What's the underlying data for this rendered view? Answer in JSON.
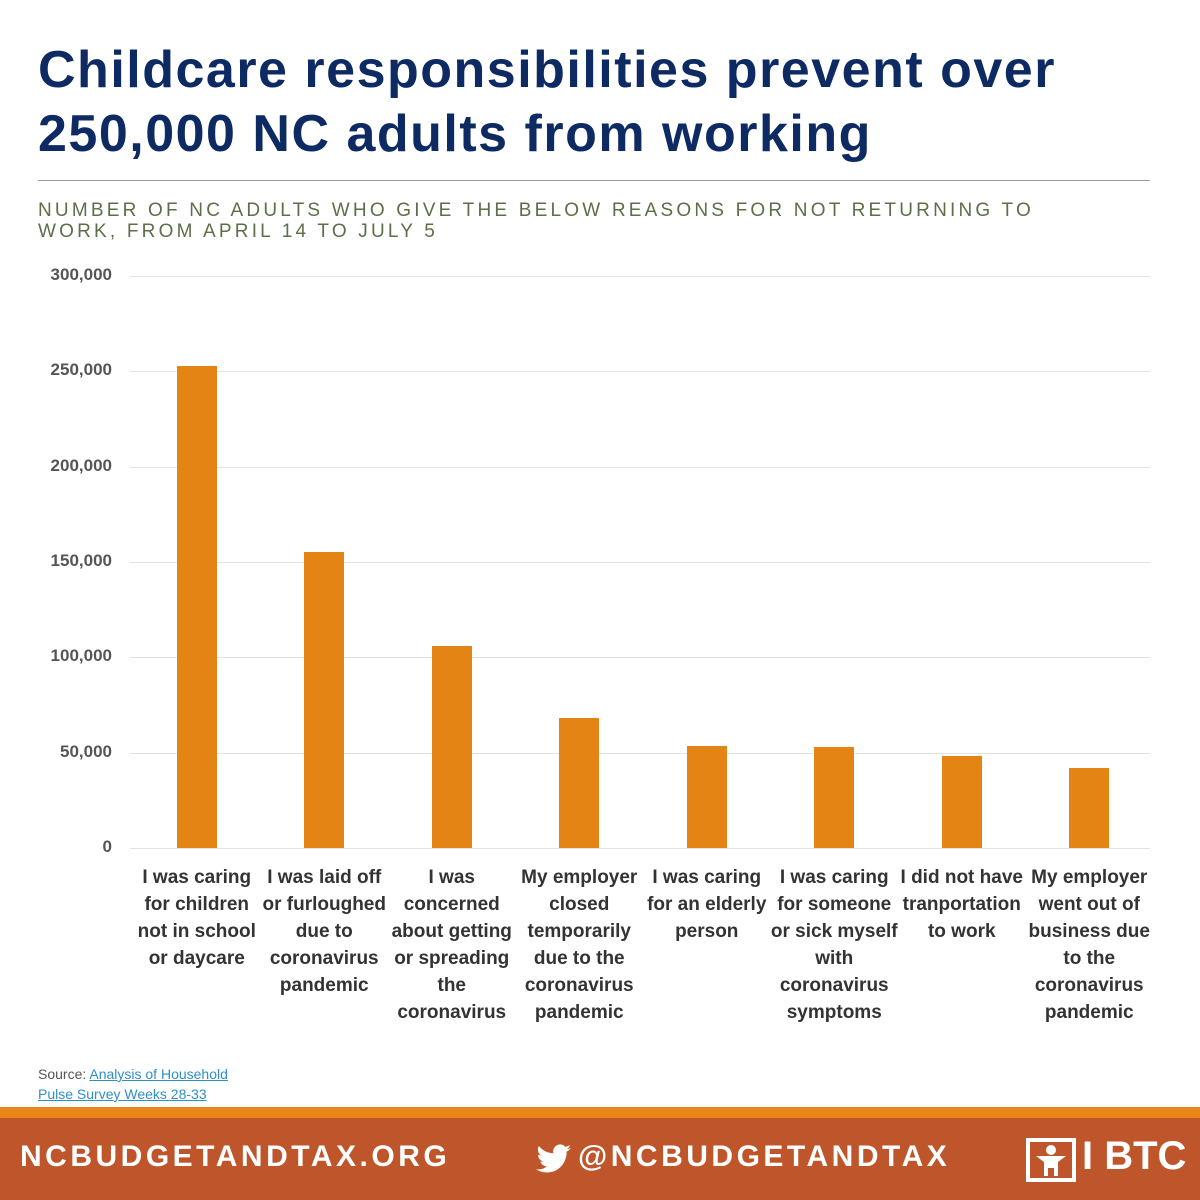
{
  "chart_data": {
    "type": "bar",
    "title": "Childcare responsibilities prevent over 250,000 NC adults from working",
    "subtitle": "NUMBER OF NC ADULTS WHO GIVE THE BELOW REASONS FOR NOT RETURNING TO WORK, FROM APRIL 14 TO JULY 5",
    "categories": [
      "I was caring for children not in school or daycare",
      "I was laid off or furloughed due to coronavirus pandemic",
      "I was concerned about getting or spreading the coronavirus",
      "My employer closed temporarily due to the coronavirus pandemic",
      "I was caring for an elderly person",
      "I was caring for someone or sick myself with coronavirus symptoms",
      "I did not have tranportation to work",
      "My employer went out of business due to the coronavirus pandemic"
    ],
    "values": [
      253000,
      155000,
      106000,
      68000,
      53500,
      53000,
      48000,
      42000
    ],
    "color": "#e38414",
    "ylim": [
      0,
      300000
    ],
    "yticks": [
      0,
      {
        "value": 50000,
        "label": "50,000"
      },
      {
        "value": 100000,
        "label": "100,000"
      },
      {
        "value": 150000,
        "label": "150,000"
      },
      {
        "value": 200000,
        "label": "200,000"
      },
      {
        "value": 250000,
        "label": "250,000"
      },
      {
        "value": 300000,
        "label": "300,000"
      }
    ],
    "grid": true,
    "source_label": "Source:",
    "source_link": "Analysis of Household Pulse Survey Weeks 28-33"
  },
  "footer": {
    "website": "NCBUDGETANDTAX.ORG",
    "twitter": "@NCBUDGETANDTAX",
    "logo": "I BTC"
  }
}
